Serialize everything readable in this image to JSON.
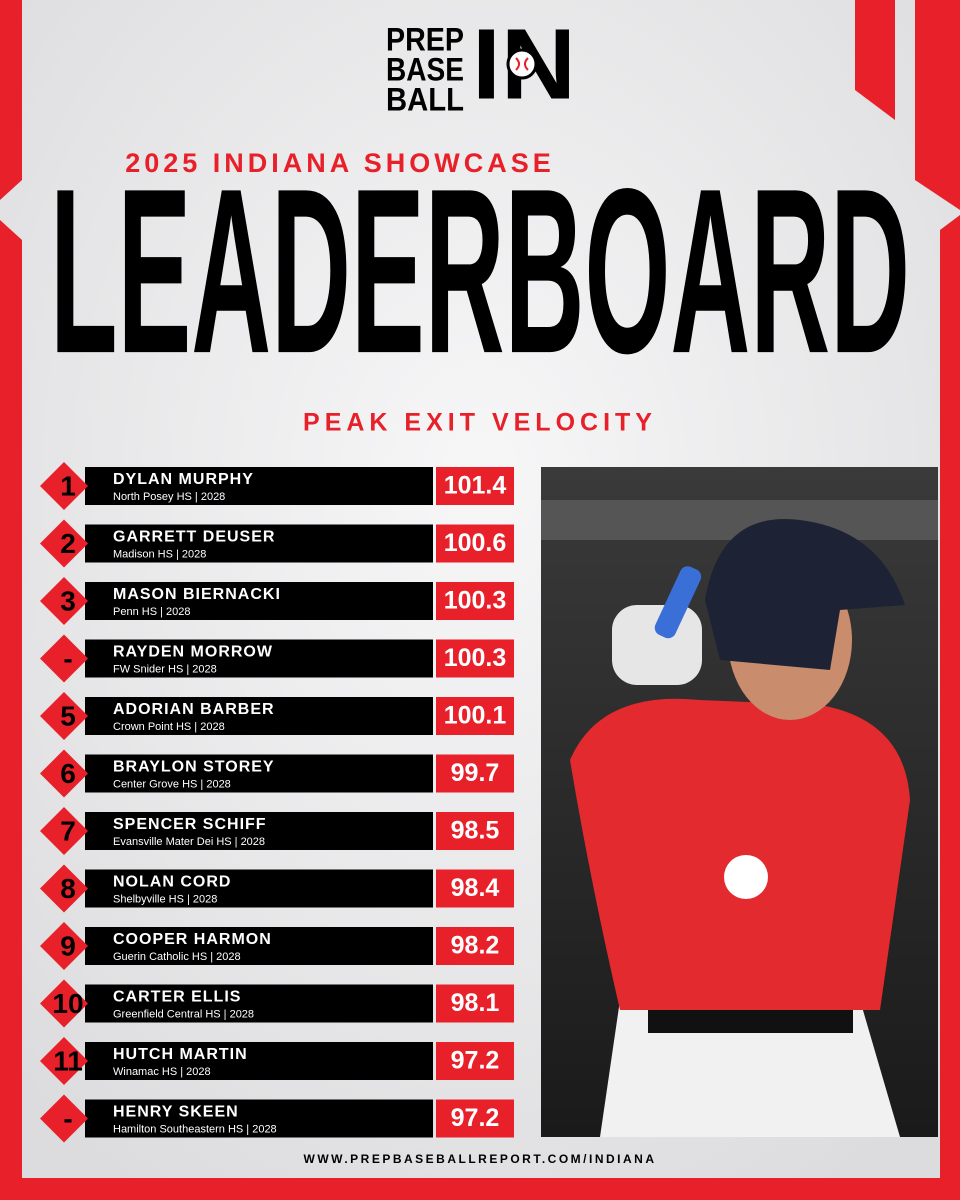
{
  "logo": {
    "line1": "PREP",
    "line2": "BASE",
    "line3": "BALL",
    "mark": "IN"
  },
  "header": {
    "subtitle": "2025 INDIANA SHOWCASE",
    "title": "LEADERBOARD",
    "metric": "PEAK EXIT VELOCITY"
  },
  "table": {
    "rows": [
      {
        "rank": "1",
        "name": "DYLAN MURPHY",
        "school": "North Posey HS | 2028",
        "value": 101.4
      },
      {
        "rank": "2",
        "name": "GARRETT DEUSER",
        "school": "Madison HS | 2028",
        "value": 100.6
      },
      {
        "rank": "3",
        "name": "MASON BIERNACKI",
        "school": "Penn HS | 2028",
        "value": 100.3
      },
      {
        "rank": "-",
        "name": "RAYDEN MORROW",
        "school": "FW Snider HS | 2028",
        "value": 100.3
      },
      {
        "rank": "5",
        "name": "ADORIAN BARBER",
        "school": "Crown Point HS | 2028",
        "value": 100.1
      },
      {
        "rank": "6",
        "name": "BRAYLON STOREY",
        "school": "Center Grove HS | 2028",
        "value": 99.7
      },
      {
        "rank": "7",
        "name": "SPENCER SCHIFF",
        "school": "Evansville Mater Dei HS | 2028",
        "value": 98.5
      },
      {
        "rank": "8",
        "name": "NOLAN CORD",
        "school": "Shelbyville HS | 2028",
        "value": 98.4
      },
      {
        "rank": "9",
        "name": "COOPER HARMON",
        "school": "Guerin Catholic HS | 2028",
        "value": 98.2
      },
      {
        "rank": "10",
        "name": "CARTER ELLIS",
        "school": "Greenfield Central HS | 2028",
        "value": 98.1
      },
      {
        "rank": "11",
        "name": "HUTCH MARTIN",
        "school": "Winamac HS | 2028",
        "value": 97.2
      },
      {
        "rank": "-",
        "name": "HENRY SKEEN",
        "school": "Hamilton Southeastern HS | 2028",
        "value": 97.2
      }
    ]
  },
  "footer": {
    "url": "WWW.PREPBASEBALLREPORT.COM/INDIANA"
  }
}
